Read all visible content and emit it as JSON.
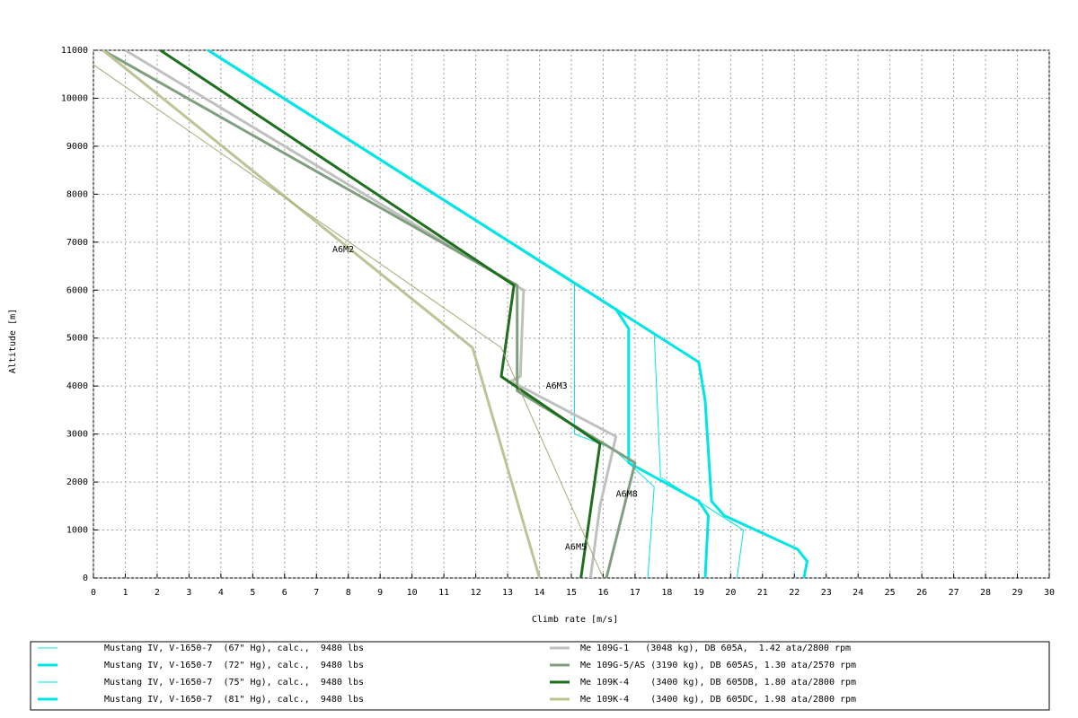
{
  "chart_data": {
    "type": "line",
    "xlabel": "Climb rate [m/s]",
    "ylabel": "Altitude [m]",
    "xlim": [
      0,
      30
    ],
    "ylim": [
      0,
      11000
    ],
    "xticks": [
      0,
      1,
      2,
      3,
      4,
      5,
      6,
      7,
      8,
      9,
      10,
      11,
      12,
      13,
      14,
      15,
      16,
      17,
      18,
      19,
      20,
      21,
      22,
      23,
      24,
      25,
      26,
      27,
      28,
      29,
      30
    ],
    "yticks": [
      0,
      1000,
      2000,
      3000,
      4000,
      5000,
      6000,
      7000,
      8000,
      9000,
      10000,
      11000
    ],
    "grid": true,
    "series": [
      {
        "name": "Mustang IV, V-1650-7  (67\" Hg), calc.,  9480 lbs",
        "color": "#00e5e5",
        "width": 1,
        "x": [
          3.6,
          15.1,
          15.1,
          16.3,
          17.6,
          17.4
        ],
        "values": [
          11000,
          6150,
          3000,
          2700,
          1900,
          0
        ]
      },
      {
        "name": "Mustang IV, V-1650-7  (72\" Hg), calc.,  9480 lbs",
        "color": "#00e5e5",
        "width": 3,
        "x": [
          3.6,
          16.4,
          16.8,
          16.8,
          19.0,
          19.3,
          19.2
        ],
        "values": [
          11000,
          5600,
          5200,
          2400,
          1600,
          1300,
          0
        ]
      },
      {
        "name": "Mustang IV, V-1650-7  (75\" Hg), calc.,  9480 lbs",
        "color": "#00e5e5",
        "width": 1,
        "x": [
          3.6,
          17.6,
          17.8,
          20.4,
          20.2
        ],
        "values": [
          11000,
          5100,
          2100,
          1000,
          0
        ]
      },
      {
        "name": "Mustang IV, V-1650-7  (81\" Hg), calc.,  9480 lbs",
        "color": "#00e5e5",
        "width": 3,
        "x": [
          3.6,
          19.0,
          19.2,
          19.4,
          19.8,
          22.1,
          22.4,
          22.3
        ],
        "values": [
          11000,
          4500,
          3700,
          1600,
          1300,
          600,
          350,
          0
        ]
      },
      {
        "name": "Me 109G-1   (3048 kg), DB 605A,  1.42 ata/2800 rpm",
        "color": "#c0c0c0",
        "width": 3,
        "x": [
          1.0,
          13.5,
          13.4,
          13.1,
          16.4,
          15.9,
          15.6
        ],
        "values": [
          11000,
          6000,
          4200,
          4100,
          2950,
          1500,
          0
        ]
      },
      {
        "name": "Me 109G-5/AS (3190 kg), DB 605AS, 1.30 ata/2570 rpm",
        "color": "#7f9f7f",
        "width": 3,
        "x": [
          0.3,
          13.3,
          13.3,
          17.0,
          16.1
        ],
        "values": [
          11000,
          6100,
          3900,
          2400,
          0
        ]
      },
      {
        "name": "Me 109K-4    (3400 kg), DB 605DB, 1.80 ata/2800 rpm",
        "color": "#1e6e1e",
        "width": 3,
        "x": [
          2.1,
          13.2,
          12.8,
          15.9,
          15.3
        ],
        "values": [
          11000,
          6100,
          4200,
          2800,
          0
        ]
      },
      {
        "name": "Me 109K-4    (3400 kg), DB 605DC, 1.98 ata/2800 rpm",
        "color": "#bcc496",
        "width": 3,
        "x": [
          0.3,
          11.9,
          14.0
        ],
        "values": [
          11000,
          4800,
          0
        ]
      },
      {
        "color": "#a8a878",
        "width": 1,
        "x": [
          0,
          12.8,
          16.0
        ],
        "values": [
          10700,
          4800,
          0
        ]
      }
    ],
    "annotations": [
      {
        "text": "A6M2",
        "x": 7.5,
        "y": 6850,
        "color": "#bcc496"
      },
      {
        "text": "A6M3",
        "x": 14.2,
        "y": 4000,
        "color": "#c0c0c0"
      },
      {
        "text": "A6M5",
        "x": 14.8,
        "y": 650,
        "color": "#1e6e1e"
      },
      {
        "text": "A6M8",
        "x": 16.4,
        "y": 1750,
        "color": "#7f9f7f"
      }
    ]
  }
}
